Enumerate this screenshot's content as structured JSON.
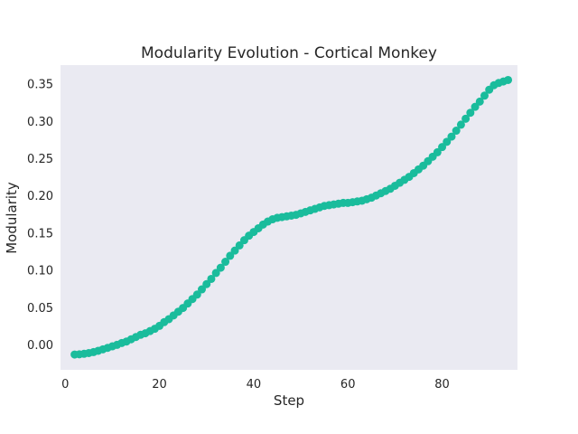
{
  "chart_data": {
    "type": "scatter",
    "title": "Modularity Evolution - Cortical Monkey",
    "xlabel": "Step",
    "ylabel": "Modularity",
    "xlim": [
      -1,
      96
    ],
    "ylim": [
      -0.034,
      0.375
    ],
    "xticks": [
      0,
      20,
      40,
      60,
      80
    ],
    "yticks": [
      0.0,
      0.05,
      0.1,
      0.15,
      0.2,
      0.25,
      0.3,
      0.35
    ],
    "xtick_labels": [
      "0",
      "20",
      "40",
      "60",
      "80"
    ],
    "ytick_labels": [
      "0.00",
      "0.05",
      "0.10",
      "0.15",
      "0.20",
      "0.25",
      "0.30",
      "0.35"
    ],
    "grid": false,
    "colors": {
      "marker": "#1abc9c",
      "plot_bg": "#eaeaf2"
    },
    "series": [
      {
        "name": "Modularity",
        "x": [
          2,
          3,
          4,
          5,
          6,
          7,
          8,
          9,
          10,
          11,
          12,
          13,
          14,
          15,
          16,
          17,
          18,
          19,
          20,
          21,
          22,
          23,
          24,
          25,
          26,
          27,
          28,
          29,
          30,
          31,
          32,
          33,
          34,
          35,
          36,
          37,
          38,
          39,
          40,
          41,
          42,
          43,
          44,
          45,
          46,
          47,
          48,
          49,
          50,
          51,
          52,
          53,
          54,
          55,
          56,
          57,
          58,
          59,
          60,
          61,
          62,
          63,
          64,
          65,
          66,
          67,
          68,
          69,
          70,
          71,
          72,
          73,
          74,
          75,
          76,
          77,
          78,
          79,
          80,
          81,
          82,
          83,
          84,
          85,
          86,
          87,
          88,
          89,
          90,
          91,
          92,
          93,
          94
        ],
        "y": [
          -0.0135,
          -0.0132,
          -0.0125,
          -0.0115,
          -0.0102,
          -0.0085,
          -0.0065,
          -0.0045,
          -0.0025,
          -0.0005,
          0.002,
          0.004,
          0.007,
          0.01,
          0.013,
          0.015,
          0.018,
          0.021,
          0.025,
          0.03,
          0.034,
          0.039,
          0.044,
          0.049,
          0.055,
          0.061,
          0.067,
          0.074,
          0.081,
          0.088,
          0.096,
          0.103,
          0.111,
          0.119,
          0.126,
          0.133,
          0.14,
          0.146,
          0.151,
          0.156,
          0.161,
          0.165,
          0.168,
          0.17,
          0.171,
          0.172,
          0.173,
          0.174,
          0.176,
          0.178,
          0.18,
          0.182,
          0.184,
          0.186,
          0.187,
          0.188,
          0.189,
          0.19,
          0.19,
          0.191,
          0.192,
          0.193,
          0.195,
          0.197,
          0.2,
          0.203,
          0.206,
          0.209,
          0.213,
          0.217,
          0.221,
          0.225,
          0.23,
          0.235,
          0.24,
          0.246,
          0.252,
          0.258,
          0.265,
          0.272,
          0.279,
          0.287,
          0.295,
          0.303,
          0.311,
          0.319,
          0.326,
          0.334,
          0.342,
          0.348,
          0.351,
          0.353,
          0.355
        ]
      }
    ]
  }
}
